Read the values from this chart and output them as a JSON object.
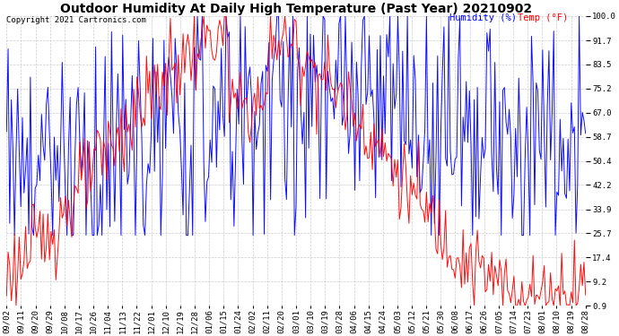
{
  "title": "Outdoor Humidity At Daily High Temperature (Past Year) 20210902",
  "copyright": "Copyright 2021 Cartronics.com",
  "legend_humidity": "Humidity (%)",
  "legend_temp": "Temp (°F)",
  "ylabel_right_ticks": [
    100.0,
    91.7,
    83.5,
    75.2,
    67.0,
    58.7,
    50.4,
    42.2,
    33.9,
    25.7,
    17.4,
    9.2,
    0.9
  ],
  "x_labels": [
    "09/02",
    "09/11",
    "09/20",
    "09/29",
    "10/08",
    "10/17",
    "10/26",
    "11/04",
    "11/13",
    "11/22",
    "12/01",
    "12/10",
    "12/19",
    "12/28",
    "01/06",
    "01/15",
    "01/24",
    "02/02",
    "02/11",
    "02/20",
    "03/01",
    "03/10",
    "03/19",
    "03/28",
    "04/06",
    "04/15",
    "04/24",
    "05/03",
    "05/12",
    "05/21",
    "05/30",
    "06/08",
    "06/17",
    "06/26",
    "07/05",
    "07/14",
    "07/23",
    "08/01",
    "08/10",
    "08/19",
    "08/28"
  ],
  "ymin": 0.9,
  "ymax": 100.0,
  "background_color": "#ffffff",
  "grid_color": "#cccccc",
  "title_fontsize": 10,
  "copyright_fontsize": 6.5,
  "legend_fontsize": 7.5,
  "tick_fontsize": 6.5,
  "humidity_color": "#0000ff",
  "temp_color": "#ff0000"
}
